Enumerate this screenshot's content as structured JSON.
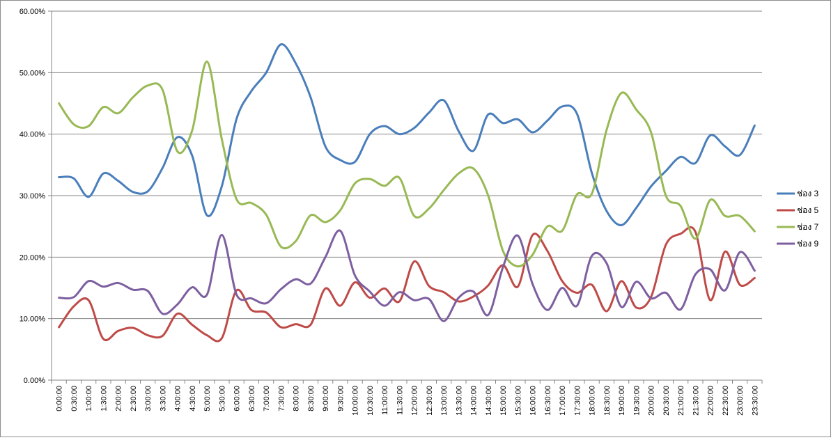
{
  "chart_data": {
    "type": "line",
    "title": "",
    "xlabel": "",
    "ylabel": "",
    "ylim": [
      0,
      60
    ],
    "y_ticks": [
      "0.00%",
      "10.00%",
      "20.00%",
      "30.00%",
      "40.00%",
      "50.00%",
      "60.00%"
    ],
    "grid": true,
    "legend_position": "right",
    "categories": [
      "0:00:00",
      "0:30:00",
      "1:00:00",
      "1:30:00",
      "2:00:00",
      "2:30:00",
      "3:00:00",
      "3:30:00",
      "4:00:00",
      "4:30:00",
      "5:00:00",
      "5:30:00",
      "6:00:00",
      "6:30:00",
      "7:00:00",
      "7:30:00",
      "8:00:00",
      "8:30:00",
      "9:00:00",
      "9:30:00",
      "10:00:00",
      "10:30:00",
      "11:00:00",
      "11:30:00",
      "12:00:00",
      "12:30:00",
      "13:00:00",
      "13:30:00",
      "14:00:00",
      "14:30:00",
      "15:00:00",
      "15:30:00",
      "16:00:00",
      "16:30:00",
      "17:00:00",
      "17:30:00",
      "18:00:00",
      "18:30:00",
      "19:00:00",
      "19:30:00",
      "20:00:00",
      "20:30:00",
      "21:00:00",
      "21:30:00",
      "22:00:00",
      "22:30:00",
      "23:00:00",
      "23:30:00"
    ],
    "series": [
      {
        "name": "ช่อง 3",
        "color": "#4a7ebb",
        "values": [
          33.0,
          32.8,
          29.8,
          33.6,
          32.4,
          30.6,
          30.7,
          34.5,
          39.5,
          36.5,
          26.8,
          31.5,
          42.5,
          47.0,
          50.0,
          54.6,
          51.5,
          46.0,
          38.0,
          35.8,
          35.5,
          40.0,
          41.3,
          40.0,
          41.0,
          43.5,
          45.5,
          40.5,
          37.3,
          43.2,
          41.8,
          42.4,
          40.3,
          42.2,
          44.5,
          43.3,
          33.7,
          27.5,
          25.2,
          28.0,
          31.5,
          34.0,
          36.3,
          35.3,
          39.8,
          38.0,
          36.6,
          41.4
        ]
      },
      {
        "name": "ช่อง 5",
        "color": "#be4b48",
        "values": [
          8.6,
          12.0,
          13.0,
          6.7,
          8.0,
          8.5,
          7.3,
          7.2,
          10.8,
          9.0,
          7.3,
          6.8,
          14.6,
          11.4,
          11.0,
          8.6,
          9.1,
          9.0,
          14.9,
          12.1,
          15.9,
          13.4,
          14.9,
          12.8,
          19.3,
          15.3,
          14.3,
          12.8,
          13.6,
          15.4,
          18.7,
          15.2,
          23.6,
          21.0,
          16.1,
          14.2,
          15.5,
          11.2,
          16.1,
          11.8,
          13.5,
          22.0,
          23.8,
          24.1,
          13.0,
          20.9,
          15.5,
          16.6
        ]
      },
      {
        "name": "ช่อง 7",
        "color": "#98b954",
        "values": [
          45.0,
          41.6,
          41.3,
          44.4,
          43.4,
          46.0,
          47.9,
          47.2,
          37.2,
          40.6,
          51.8,
          39.2,
          29.4,
          28.8,
          26.9,
          21.7,
          22.6,
          26.8,
          25.7,
          27.6,
          32.0,
          32.7,
          31.6,
          32.9,
          26.7,
          27.9,
          30.9,
          33.6,
          34.4,
          30.0,
          21.0,
          18.5,
          20.4,
          25.0,
          24.3,
          30.2,
          30.3,
          40.7,
          46.7,
          44.0,
          40.3,
          30.0,
          28.3,
          23.0,
          29.3,
          26.7,
          26.7,
          24.2
        ]
      },
      {
        "name": "ช่อง 9",
        "color": "#7d5fa0",
        "values": [
          13.4,
          13.5,
          16.1,
          15.2,
          15.8,
          14.7,
          14.5,
          10.8,
          12.3,
          15.1,
          13.9,
          23.6,
          13.9,
          13.3,
          12.5,
          14.8,
          16.4,
          15.7,
          20.0,
          24.3,
          17.0,
          14.4,
          12.1,
          14.3,
          13.0,
          13.2,
          9.6,
          13.4,
          14.4,
          10.6,
          18.4,
          23.5,
          15.6,
          11.4,
          15.0,
          12.1,
          20.2,
          19.0,
          11.9,
          16.0,
          13.3,
          14.2,
          11.5,
          17.2,
          18.0,
          14.6,
          20.8,
          17.8
        ]
      }
    ]
  }
}
